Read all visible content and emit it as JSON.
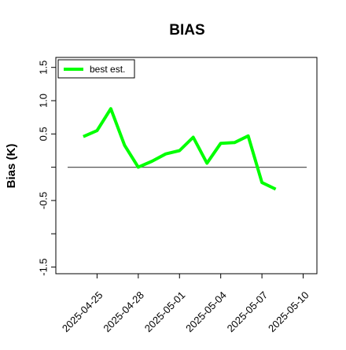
{
  "chart_data": {
    "type": "line",
    "title": "BIAS",
    "xlabel": "",
    "ylabel": "Bias (K)",
    "ylim": [
      -1.6,
      1.65
    ],
    "xlim": [
      "2025-04-22",
      "2025-05-11"
    ],
    "yticks": [
      -1.5,
      -1.0,
      -0.5,
      0.0,
      0.5,
      1.0,
      1.5
    ],
    "ytick_labels": [
      "-1.5",
      "",
      "-0.5",
      "",
      "0.5",
      "1.0",
      "1.5"
    ],
    "xticks": [
      "2025-04-25",
      "2025-04-28",
      "2025-05-01",
      "2025-05-04",
      "2025-05-07",
      "2025-05-10"
    ],
    "xtick_labels": [
      "2025-04-25",
      "2025-04-28",
      "2025-05-01",
      "2025-05-04",
      "2025-05-07",
      "2025-05-10"
    ],
    "reference_line": {
      "y": 0.0,
      "color": "#555555"
    },
    "legend": {
      "position": "top-left"
    },
    "grid": false,
    "series": [
      {
        "name": "best est.",
        "color": "#00ff00",
        "x": [
          "2025-04-24",
          "2025-04-25",
          "2025-04-26",
          "2025-04-27",
          "2025-04-28",
          "2025-04-29",
          "2025-04-30",
          "2025-05-01",
          "2025-05-02",
          "2025-05-03",
          "2025-05-04",
          "2025-05-05",
          "2025-05-06",
          "2025-05-07",
          "2025-05-08"
        ],
        "values": [
          0.46,
          0.55,
          0.88,
          0.33,
          0.0,
          0.09,
          0.2,
          0.25,
          0.45,
          0.06,
          0.36,
          0.37,
          0.47,
          -0.23,
          -0.33
        ]
      }
    ]
  }
}
